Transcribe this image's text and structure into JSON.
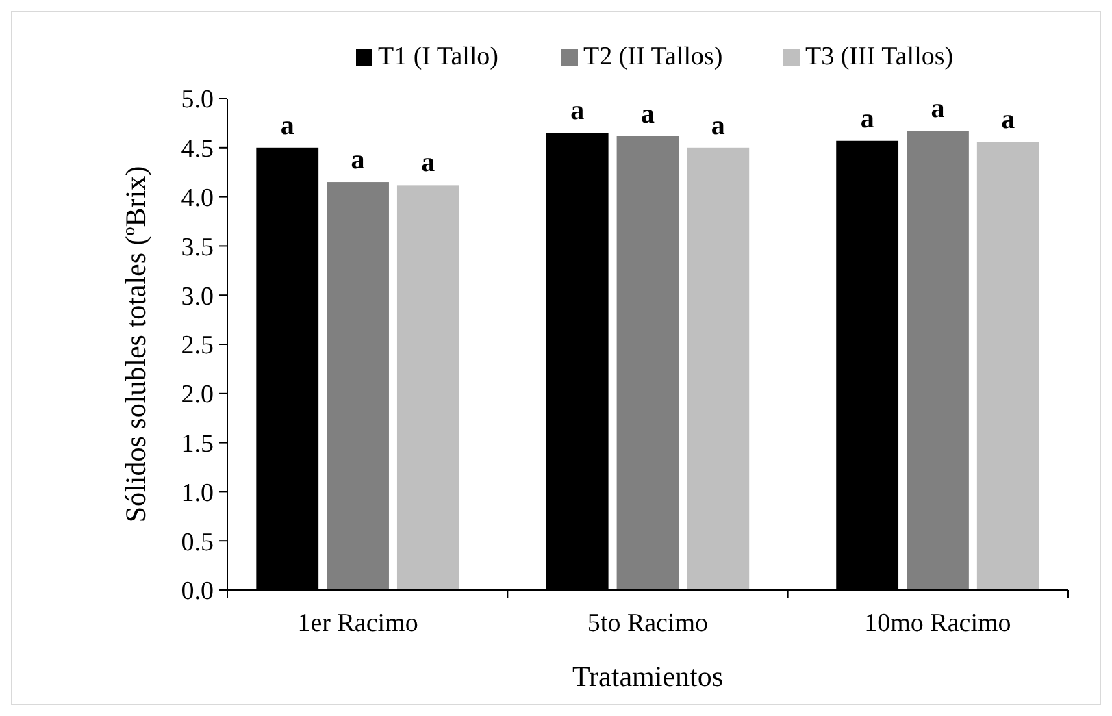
{
  "chart_data": {
    "type": "bar",
    "xlabel": "Tratamientos",
    "ylabel": "Sólidos solubles totales (ºBrix)",
    "categories": [
      "1er Racimo",
      "5to Racimo",
      "10mo Racimo"
    ],
    "series": [
      {
        "name": "T1 (I Tallo)",
        "color": "#000000",
        "values": [
          4.5,
          4.65,
          4.57
        ],
        "value_labels": [
          "a",
          "a",
          "a"
        ]
      },
      {
        "name": "T2 (II Tallos)",
        "color": "#808080",
        "values": [
          4.15,
          4.62,
          4.67
        ],
        "value_labels": [
          "a",
          "a",
          "a"
        ]
      },
      {
        "name": "T3 (III Tallos)",
        "color": "#bfbfbf",
        "values": [
          4.12,
          4.5,
          4.56
        ],
        "value_labels": [
          "a",
          "a",
          "a"
        ]
      }
    ],
    "ylim": [
      0,
      5
    ],
    "yticks": [
      {
        "value": 0,
        "label": "0.0"
      },
      {
        "value": 0.5,
        "label": "0.5"
      },
      {
        "value": 1,
        "label": "1.0"
      },
      {
        "value": 1.5,
        "label": "1.5"
      },
      {
        "value": 2,
        "label": "2.0"
      },
      {
        "value": 2.5,
        "label": "2.5"
      },
      {
        "value": 3,
        "label": "3.0"
      },
      {
        "value": 3.5,
        "label": "3.5"
      },
      {
        "value": 4,
        "label": "4.0"
      },
      {
        "value": 4.5,
        "label": "4.5"
      },
      {
        "value": 5,
        "label": "5.0"
      }
    ],
    "grid": false,
    "legend": "top"
  }
}
